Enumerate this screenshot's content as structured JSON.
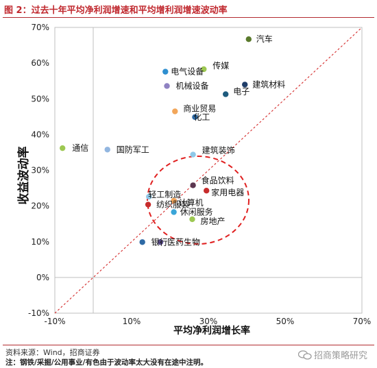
{
  "figure_title": "图 2：过去十年平均净利润增速和平均增利润增速波动率",
  "source_text": "资料来源：Wind，招商证券",
  "note_text": "注：钢铁/采掘/公用事业/有色由于波动率太大没有在途中注明。",
  "watermark": "招商策略研究",
  "chart_data": {
    "type": "scatter",
    "xlabel": "平均净利润增长率",
    "ylabel": "收益波动率",
    "xlim": [
      -10,
      70
    ],
    "ylim": [
      -10,
      70
    ],
    "x_ticks": [
      "-10%",
      "10%",
      "30%",
      "50%",
      "70%"
    ],
    "x_tick_values": [
      -10,
      10,
      30,
      50,
      70
    ],
    "y_ticks": [
      "70%",
      "60%",
      "50%",
      "40%",
      "30%",
      "20%",
      "10%",
      "0%",
      "-10%"
    ],
    "y_tick_values": [
      70,
      60,
      50,
      40,
      30,
      20,
      10,
      0,
      -10
    ],
    "reference_line": "y = x (red dashed)",
    "highlight_circle": "red dashed circle around clustered points",
    "points": [
      {
        "label": "汽车",
        "x": 40.5,
        "y": 66.7,
        "color": "#5a7a2c"
      },
      {
        "label": "传媒",
        "x": 28.8,
        "y": 58.3,
        "color": "#9dc852"
      },
      {
        "label": "电气设备",
        "x": 18.8,
        "y": 57.6,
        "color": "#2f8fd0"
      },
      {
        "label": "建筑材料",
        "x": 39.5,
        "y": 54.0,
        "color": "#1f3d68"
      },
      {
        "label": "机械设备",
        "x": 19.2,
        "y": 53.6,
        "color": "#8f82c2"
      },
      {
        "label": "电子",
        "x": 34.5,
        "y": 51.3,
        "color": "#1e5b7e"
      },
      {
        "label": "商业贸易",
        "x": 21.3,
        "y": 46.5,
        "color": "#f2a65a"
      },
      {
        "label": "化工",
        "x": 26.5,
        "y": 44.9,
        "color": "#2e6aa5"
      },
      {
        "label": "通信",
        "x": -8.0,
        "y": 36.2,
        "color": "#9dc852"
      },
      {
        "label": "国防军工",
        "x": 3.7,
        "y": 35.8,
        "color": "#92b6e0"
      },
      {
        "label": "建筑装饰",
        "x": 26.0,
        "y": 34.4,
        "color": "#8fc8e8"
      },
      {
        "label": "食品饮料",
        "x": 26.0,
        "y": 25.8,
        "color": "#5c3650"
      },
      {
        "label": "家用电器",
        "x": 29.5,
        "y": 24.3,
        "color": "#c72c2c"
      },
      {
        "label": "轻工制造",
        "x": 14.5,
        "y": 22.6,
        "color": "#8fc8e8"
      },
      {
        "label": "计算机",
        "x": 21.0,
        "y": 21.5,
        "color": "#f2a65a"
      },
      {
        "label": "纺织服装",
        "x": 14.3,
        "y": 20.4,
        "color": "#c72c2c"
      },
      {
        "label": "休闲服务",
        "x": 21.0,
        "y": 18.3,
        "color": "#3aa5d8"
      },
      {
        "label": "房地产",
        "x": 25.8,
        "y": 16.3,
        "color": "#9dc852"
      },
      {
        "label": "银行",
        "x": 12.8,
        "y": 9.9,
        "color": "#2e6aa5"
      },
      {
        "label": "医药生物",
        "x": 17.5,
        "y": 9.9,
        "color": "#5a4e8c"
      }
    ]
  }
}
